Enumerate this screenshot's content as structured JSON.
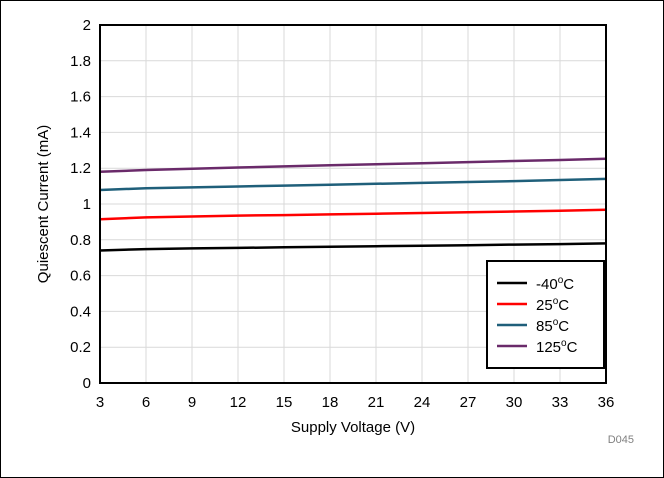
{
  "chart_data": {
    "type": "line",
    "xlabel": "Supply Voltage (V)",
    "ylabel": "Quiescent Current (mA)",
    "xlim": [
      3,
      36
    ],
    "ylim": [
      0,
      2
    ],
    "xticks": [
      3,
      6,
      9,
      12,
      15,
      18,
      21,
      24,
      27,
      30,
      33,
      36
    ],
    "yticks": [
      0,
      0.2,
      0.4,
      0.6,
      0.8,
      1,
      1.2,
      1.4,
      1.6,
      1.8,
      2
    ],
    "grid": true,
    "legend_position": "bottom-right",
    "figure_id": "D045",
    "x": [
      3,
      6,
      9,
      12,
      15,
      18,
      21,
      24,
      27,
      30,
      33,
      36
    ],
    "series": [
      {
        "name": "-40",
        "unit": "C",
        "color": "#000000",
        "values": [
          0.74,
          0.748,
          0.752,
          0.755,
          0.758,
          0.761,
          0.764,
          0.767,
          0.77,
          0.773,
          0.776,
          0.78
        ]
      },
      {
        "name": "25",
        "unit": "C",
        "color": "#ff0000",
        "values": [
          0.915,
          0.925,
          0.93,
          0.935,
          0.938,
          0.942,
          0.946,
          0.95,
          0.954,
          0.958,
          0.962,
          0.968
        ]
      },
      {
        "name": "85",
        "unit": "C",
        "color": "#1f5f7a",
        "values": [
          1.078,
          1.088,
          1.093,
          1.098,
          1.103,
          1.108,
          1.113,
          1.118,
          1.123,
          1.128,
          1.134,
          1.14
        ]
      },
      {
        "name": "125",
        "unit": "C",
        "color": "#6a2a6a",
        "values": [
          1.18,
          1.19,
          1.197,
          1.204,
          1.21,
          1.216,
          1.222,
          1.228,
          1.234,
          1.24,
          1.246,
          1.253
        ]
      }
    ]
  }
}
